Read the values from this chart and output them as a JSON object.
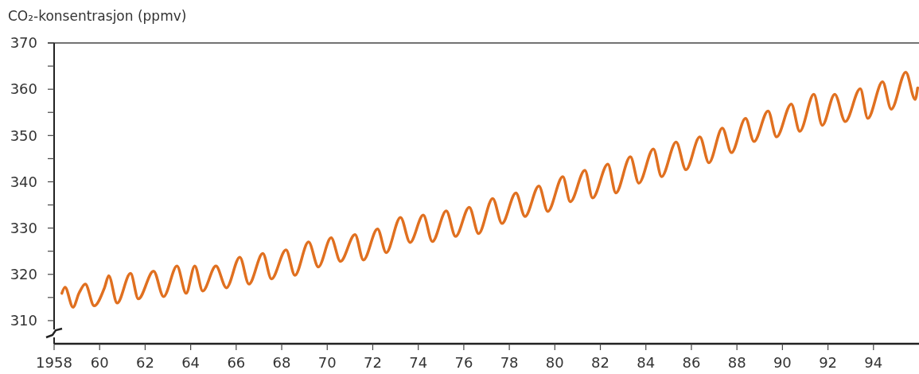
{
  "chart_data": {
    "type": "line",
    "ylabel": "CO₂-konsentrasjon (ppmv)",
    "color": "#e07020",
    "x": [
      1958.34,
      1958.48,
      1958.83,
      1959.1,
      1959.37,
      1959.76,
      1960.22,
      1960.4,
      1960.77,
      1961.36,
      1961.7,
      1962.37,
      1962.81,
      1963.4,
      1963.8,
      1964.18,
      1964.53,
      1965.11,
      1965.57,
      1966.16,
      1966.56,
      1967.17,
      1967.55,
      1968.19,
      1968.58,
      1969.18,
      1969.61,
      1970.17,
      1970.58,
      1971.22,
      1971.59,
      1972.21,
      1972.59,
      1973.22,
      1973.64,
      1974.22,
      1974.62,
      1975.23,
      1975.64,
      1976.24,
      1976.65,
      1977.27,
      1977.68,
      1978.29,
      1978.69,
      1979.3,
      1979.69,
      1980.35,
      1980.68,
      1981.32,
      1981.66,
      1982.33,
      1982.68,
      1983.32,
      1983.69,
      1984.33,
      1984.69,
      1985.33,
      1985.76,
      1986.37,
      1986.77,
      1987.36,
      1987.76,
      1988.38,
      1988.75,
      1989.37,
      1989.74,
      1990.39,
      1990.76,
      1991.38,
      1991.75,
      1992.3,
      1992.76,
      1993.42,
      1993.75,
      1994.4,
      1994.78,
      1995.42,
      1995.83,
      1995.94
    ],
    "values": [
      315.9,
      317.2,
      312.9,
      316.0,
      317.9,
      313.2,
      317.2,
      319.7,
      313.8,
      320.2,
      314.7,
      320.7,
      315.2,
      321.8,
      315.9,
      321.8,
      316.4,
      321.8,
      317.1,
      323.7,
      317.9,
      324.5,
      319.0,
      325.3,
      319.8,
      327.0,
      321.6,
      327.9,
      322.8,
      328.6,
      323.1,
      329.8,
      324.7,
      332.3,
      326.9,
      332.8,
      327.1,
      333.7,
      328.2,
      334.5,
      328.8,
      336.4,
      331.0,
      337.6,
      332.5,
      339.1,
      333.6,
      341.1,
      335.7,
      342.5,
      336.5,
      343.8,
      337.6,
      345.4,
      339.7,
      347.1,
      341.1,
      348.6,
      342.6,
      349.7,
      344.1,
      351.6,
      346.3,
      353.7,
      348.7,
      355.3,
      349.7,
      356.8,
      350.9,
      358.9,
      352.2,
      358.9,
      353.0,
      360.1,
      353.7,
      361.6,
      355.7,
      363.7,
      357.8,
      360.3
    ],
    "xlim": [
      1958,
      1996
    ],
    "xticks": [
      1958,
      {
        "value": 1960,
        "label": "60"
      },
      {
        "value": 1962,
        "label": "62"
      },
      {
        "value": 1964,
        "label": "64"
      },
      {
        "value": 1966,
        "label": "66"
      },
      {
        "value": 1968,
        "label": "68"
      },
      {
        "value": 1970,
        "label": "70"
      },
      {
        "value": 1972,
        "label": "72"
      },
      {
        "value": 1974,
        "label": "74"
      },
      {
        "value": 1976,
        "label": "76"
      },
      {
        "value": 1978,
        "label": "78"
      },
      {
        "value": 1980,
        "label": "80"
      },
      {
        "value": 1982,
        "label": "82"
      },
      {
        "value": 1984,
        "label": "84"
      },
      {
        "value": 1986,
        "label": "86"
      },
      {
        "value": 1988,
        "label": "88"
      },
      {
        "value": 1990,
        "label": "90"
      },
      {
        "value": 1992,
        "label": "92"
      },
      {
        "value": 1994,
        "label": "94"
      }
    ],
    "ylim": [
      305,
      370
    ],
    "yticks": [
      310,
      {
        "value": 315,
        "label": null
      },
      320,
      {
        "value": 325,
        "label": null
      },
      330,
      {
        "value": 335,
        "label": null
      },
      340,
      {
        "value": 345,
        "label": null
      },
      350,
      {
        "value": 355,
        "label": null
      },
      360,
      {
        "value": 365,
        "label": null
      },
      370
    ]
  }
}
